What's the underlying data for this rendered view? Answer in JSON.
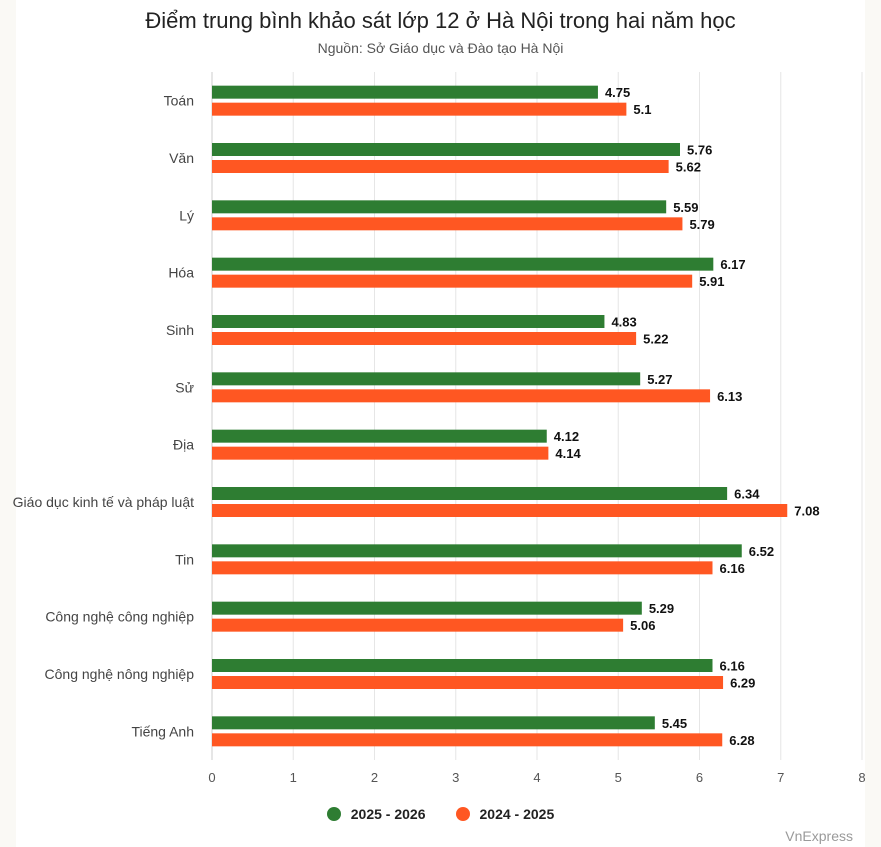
{
  "chart_data": {
    "type": "bar",
    "orientation": "horizontal",
    "title": "Điểm trung bình khảo sát lớp 12 ở Hà Nội trong hai năm học",
    "subtitle": "Nguồn: Sở Giáo dục và Đào tạo Hà Nội",
    "categories": [
      "Toán",
      "Văn",
      "Lý",
      "Hóa",
      "Sinh",
      "Sử",
      "Địa",
      "Giáo dục kinh tế và pháp luật",
      "Tin",
      "Công nghệ công nghiệp",
      "Công nghệ nông nghiệp",
      "Tiếng Anh"
    ],
    "series": [
      {
        "name": "2025 - 2026",
        "color": "#2e7d32",
        "values": [
          4.75,
          5.76,
          5.59,
          6.17,
          4.83,
          5.27,
          4.12,
          6.34,
          6.52,
          5.29,
          6.16,
          5.45
        ]
      },
      {
        "name": "2024 - 2025",
        "color": "#ff5722",
        "values": [
          5.1,
          5.62,
          5.79,
          5.91,
          5.22,
          6.13,
          4.14,
          7.08,
          6.16,
          5.06,
          6.29,
          6.28
        ]
      }
    ],
    "xlim": [
      0,
      8
    ],
    "xticks": [
      0,
      1,
      2,
      3,
      4,
      5,
      6,
      7,
      8
    ],
    "grid": true,
    "legend_position": "bottom-center"
  },
  "legend": {
    "items": [
      {
        "label": "2025 - 2026",
        "color": "#2e7d32"
      },
      {
        "label": "2024 - 2025",
        "color": "#ff5722"
      }
    ]
  },
  "source_credit": "VnExpress"
}
